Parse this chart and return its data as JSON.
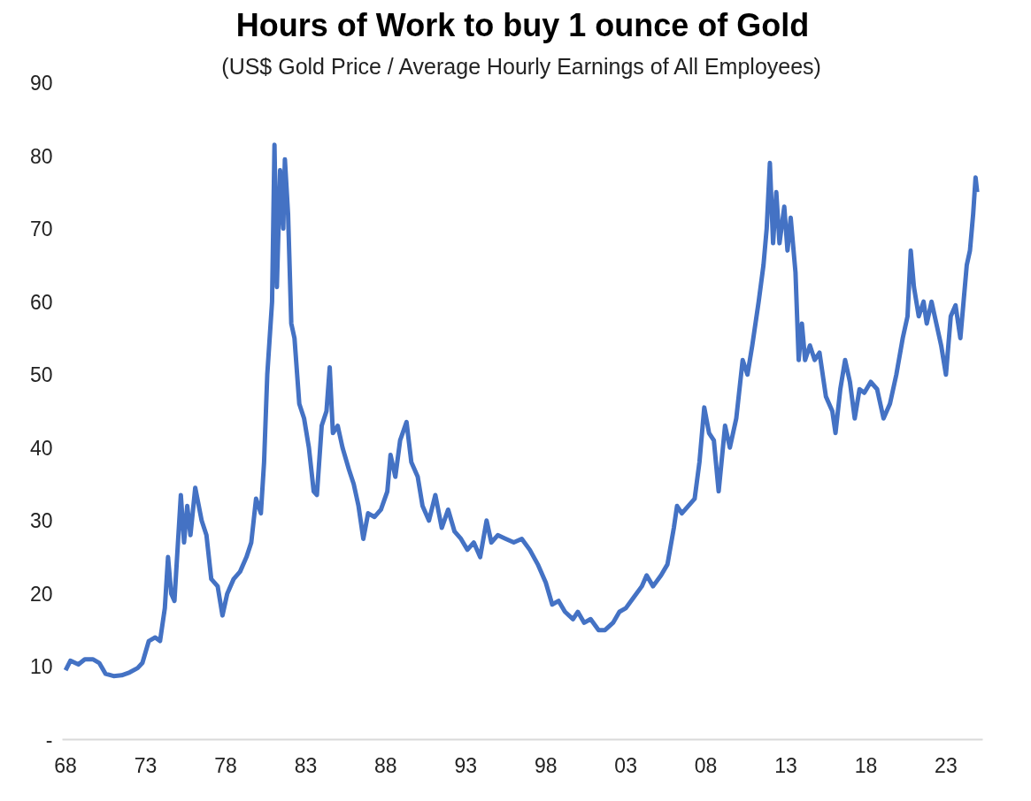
{
  "chart_data": {
    "type": "line",
    "title": "Hours of Work to buy 1 ounce of Gold",
    "subtitle": "(US$ Gold Price / Average Hourly Earnings of All Employees)",
    "x": [
      1968.0,
      1968.3,
      1968.8,
      1969.2,
      1969.7,
      1970.1,
      1970.5,
      1971.0,
      1971.5,
      1972.0,
      1972.5,
      1972.8,
      1973.2,
      1973.6,
      1973.9,
      1974.2,
      1974.4,
      1974.6,
      1974.8,
      1975.2,
      1975.4,
      1975.6,
      1975.8,
      1976.1,
      1976.5,
      1976.8,
      1977.1,
      1977.5,
      1977.8,
      1978.1,
      1978.5,
      1978.9,
      1979.3,
      1979.6,
      1979.9,
      1980.2,
      1980.4,
      1980.6,
      1980.9,
      1981.05,
      1981.2,
      1981.4,
      1981.6,
      1981.7,
      1981.9,
      1982.1,
      1982.3,
      1982.6,
      1982.9,
      1983.2,
      1983.5,
      1983.7,
      1984.0,
      1984.3,
      1984.5,
      1984.7,
      1985.0,
      1985.3,
      1985.7,
      1986.0,
      1986.3,
      1986.6,
      1986.9,
      1987.3,
      1987.7,
      1988.1,
      1988.3,
      1988.6,
      1988.9,
      1989.3,
      1989.6,
      1990.0,
      1990.3,
      1990.7,
      1991.1,
      1991.5,
      1991.9,
      1992.3,
      1992.7,
      1993.1,
      1993.5,
      1993.9,
      1994.3,
      1994.6,
      1995.0,
      1995.5,
      1996.0,
      1996.5,
      1997.0,
      1997.5,
      1998.0,
      1998.4,
      1998.8,
      1999.2,
      1999.7,
      2000.0,
      2000.4,
      2000.8,
      2001.3,
      2001.7,
      2002.2,
      2002.6,
      2003.0,
      2003.5,
      2004.0,
      2004.3,
      2004.7,
      2005.2,
      2005.6,
      2006.0,
      2006.2,
      2006.5,
      2006.9,
      2007.3,
      2007.6,
      2007.9,
      2008.2,
      2008.5,
      2008.8,
      2009.2,
      2009.5,
      2009.9,
      2010.3,
      2010.6,
      2010.9,
      2011.3,
      2011.6,
      2011.8,
      2012.0,
      2012.2,
      2012.4,
      2012.6,
      2012.9,
      2013.1,
      2013.3,
      2013.6,
      2013.8,
      2014.0,
      2014.2,
      2014.5,
      2014.8,
      2015.1,
      2015.5,
      2015.9,
      2016.1,
      2016.4,
      2016.7,
      2017.0,
      2017.3,
      2017.6,
      2017.9,
      2018.3,
      2018.7,
      2019.1,
      2019.5,
      2019.9,
      2020.3,
      2020.6,
      2020.8,
      2021.0,
      2021.3,
      2021.6,
      2021.8,
      2022.1,
      2022.4,
      2022.7,
      2023.0,
      2023.3,
      2023.6,
      2023.9,
      2024.1,
      2024.3,
      2024.5,
      2024.7,
      2024.85,
      2024.95
    ],
    "series": [
      {
        "color": "#4472c4",
        "values": [
          9.5,
          10.8,
          10.3,
          11,
          11,
          10.5,
          9,
          8.7,
          8.8,
          9.2,
          9.8,
          10.5,
          13.5,
          14,
          13.5,
          18,
          25,
          20,
          19,
          33.5,
          27,
          32,
          28,
          34.5,
          30,
          28,
          22,
          21,
          17,
          20,
          22,
          23,
          25,
          27,
          33,
          31,
          38,
          50,
          60,
          81.5,
          62,
          78,
          70,
          79.5,
          72,
          57,
          55,
          46,
          44,
          40,
          34,
          33.5,
          43,
          45,
          51,
          42,
          43,
          40,
          37,
          35,
          32,
          27.5,
          31,
          30.5,
          31.5,
          34,
          39,
          36,
          41,
          43.5,
          38,
          36,
          32,
          30,
          33.5,
          29,
          31.5,
          28.5,
          27.5,
          26,
          27,
          25,
          30,
          27,
          28,
          27.5,
          27,
          27.5,
          26,
          24,
          21.5,
          18.5,
          19,
          17.5,
          16.5,
          17.5,
          16,
          16.5,
          15,
          15,
          16,
          17.5,
          18,
          19.5,
          21,
          22.5,
          21,
          22.5,
          24,
          29,
          32,
          31,
          32,
          33,
          38,
          45.5,
          42,
          41,
          34,
          43,
          40,
          44,
          52,
          50,
          54,
          60,
          65,
          70,
          79,
          68,
          75,
          68,
          73,
          67,
          71.5,
          64,
          52,
          57,
          52,
          54,
          52,
          53,
          47,
          45,
          42,
          48,
          52,
          49,
          44,
          48,
          47.5,
          49,
          48,
          44,
          46,
          50,
          55,
          58,
          67,
          62,
          58,
          60,
          57,
          60,
          57,
          54,
          50,
          58,
          59.5,
          55,
          60,
          65,
          67,
          72,
          77,
          75
        ]
      }
    ],
    "xlim": [
      1967.8,
      2025.3
    ],
    "ylim": [
      0,
      90
    ],
    "xticks": [
      {
        "value": 1968,
        "label": "68"
      },
      {
        "value": 1973,
        "label": "73"
      },
      {
        "value": 1978,
        "label": "78"
      },
      {
        "value": 1983,
        "label": "83"
      },
      {
        "value": 1988,
        "label": "88"
      },
      {
        "value": 1993,
        "label": "93"
      },
      {
        "value": 1998,
        "label": "98"
      },
      {
        "value": 2003,
        "label": "03"
      },
      {
        "value": 2008,
        "label": "08"
      },
      {
        "value": 2013,
        "label": "13"
      },
      {
        "value": 2018,
        "label": "18"
      },
      {
        "value": 2023,
        "label": "23"
      }
    ],
    "yticks": [
      {
        "value": 0,
        "label": "-"
      },
      10,
      20,
      30,
      40,
      50,
      60,
      70,
      80,
      90
    ],
    "grid": false,
    "line_style": "solid",
    "marker": "none"
  }
}
